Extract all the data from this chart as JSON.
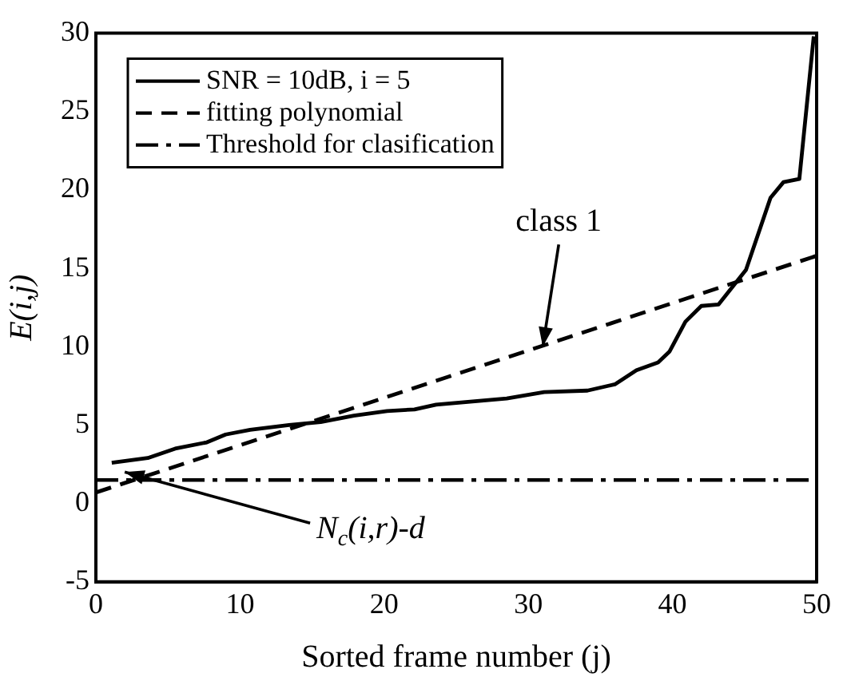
{
  "chart_data": {
    "type": "line",
    "xlabel": "Sorted frame number (j)",
    "ylabel": "E(i,j)",
    "xlim": [
      0,
      50
    ],
    "xticks": [
      0,
      10,
      20,
      30,
      40,
      50
    ],
    "ylim": [
      -5,
      30
    ],
    "yticks": [
      -5,
      0,
      5,
      10,
      15,
      20,
      25,
      30
    ],
    "grid": false,
    "legend": "top left",
    "marker": "none",
    "series": [
      {
        "name": "SNR = 10dB, i = 5",
        "color": "#000000",
        "line_style": "solid",
        "x": [
          1.1,
          3.6,
          5.5,
          7.7,
          9.0,
          10.7,
          13.4,
          15.6,
          17.9,
          20.2,
          22.1,
          23.6,
          28.5,
          31.1,
          34.1,
          36.0,
          37.5,
          39.0,
          39.8,
          40.9,
          42.0,
          43.2,
          45.1,
          46.8,
          47.7,
          48.8,
          49.8
        ],
        "values": [
          2.6,
          2.9,
          3.5,
          3.9,
          4.4,
          4.7,
          5.0,
          5.2,
          5.6,
          5.9,
          6.0,
          6.3,
          6.7,
          7.1,
          7.2,
          7.6,
          8.5,
          9.0,
          9.7,
          11.6,
          12.6,
          12.7,
          14.9,
          19.5,
          20.5,
          20.7,
          29.8
        ]
      },
      {
        "name": "fitting polynomial",
        "color": "#000000",
        "line_style": "dashed",
        "x": [
          0,
          50
        ],
        "values": [
          0.7,
          15.8
        ]
      }
    ],
    "ref_lines": [
      {
        "axis": "y",
        "value": 1.5,
        "label": "Threshold for clasification",
        "color": "#000000",
        "line_style": "dashdot"
      }
    ],
    "annotations": [
      {
        "text": "class 1",
        "x": 31,
        "y": 10
      },
      {
        "text": "N$_{c}$(i,r)-d",
        "x": 2,
        "y": 2
      }
    ]
  }
}
